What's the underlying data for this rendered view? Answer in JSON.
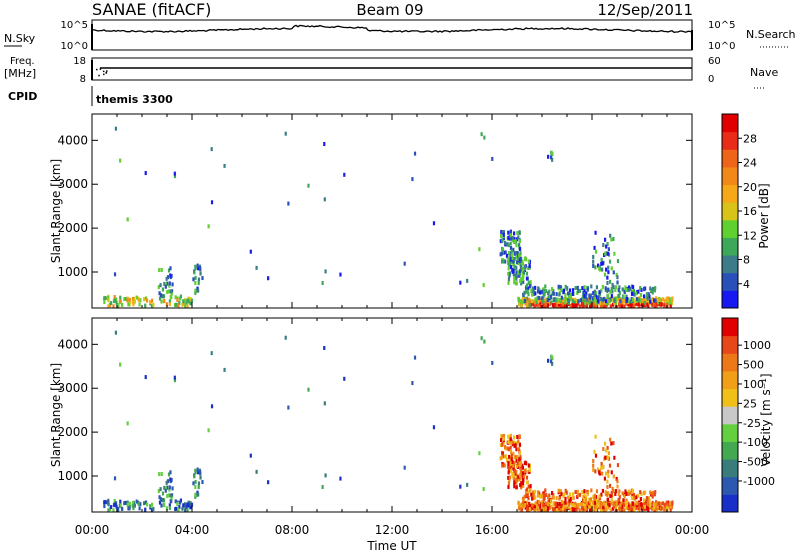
{
  "header": {
    "station": "SANAE (fitACF)",
    "beam": "Beam 09",
    "date": "12/Sep/2011"
  },
  "top_panels": {
    "nsky_label": "N.Sky",
    "nsearch_label": "N.Search",
    "noise_ticks": [
      "10^5",
      "10^0"
    ],
    "freq_label": "Freq.",
    "freq_unit": "[MHz]",
    "freq_ticks": [
      "18",
      "8"
    ],
    "nave_label": "Nave",
    "nave_ticks": [
      "60",
      "0"
    ],
    "cpid_label": "CPID",
    "cpid_value": "themis 3300"
  },
  "time_axis": {
    "ticks": [
      "00:00",
      "04:00",
      "08:00",
      "12:00",
      "16:00",
      "20:00",
      "00:00"
    ],
    "label": "Time UT"
  },
  "chart_data": [
    {
      "type": "heatmap",
      "panel": "power",
      "xlabel": "Time UT",
      "ylabel": "Slant Range [km]",
      "xlim": [
        0,
        24
      ],
      "ylim": [
        180,
        4600
      ],
      "yticks": [
        1000,
        2000,
        3000,
        4000
      ],
      "colorbar": {
        "label": "Power [dB]",
        "ticks": [
          4,
          8,
          12,
          16,
          20,
          24,
          28
        ],
        "colors": [
          "#1818f0",
          "#2850b8",
          "#3c7c88",
          "#3ea85a",
          "#60d030",
          "#d8c418",
          "#f5a818",
          "#f28818",
          "#ee6418",
          "#e82c18",
          "#e00000"
        ]
      },
      "scatter_regions": [
        {
          "t": [
            16.3,
            17.1
          ],
          "r": [
            1200,
            1900
          ]
        },
        {
          "t": [
            16.6,
            17.4
          ],
          "r": [
            700,
            1300
          ]
        },
        {
          "t": [
            17.0,
            23.2
          ],
          "r": [
            180,
            700
          ]
        },
        {
          "t": [
            20.0,
            21.0
          ],
          "r": [
            500,
            1900
          ]
        },
        {
          "t": [
            0.4,
            4.0
          ],
          "r": [
            180,
            420
          ]
        },
        {
          "t": [
            2.6,
            3.2
          ],
          "r": [
            400,
            1100
          ]
        },
        {
          "t": [
            4.0,
            4.3
          ],
          "r": [
            500,
            1150
          ]
        }
      ]
    },
    {
      "type": "heatmap",
      "panel": "velocity",
      "xlabel": "Time UT",
      "ylabel": "Slant Range [km]",
      "xlim": [
        0,
        24
      ],
      "ylim": [
        180,
        4600
      ],
      "yticks": [
        1000,
        2000,
        3000,
        4000
      ],
      "colorbar": {
        "label": "Velocity [m s⁻¹]",
        "ticks": [
          1000,
          500,
          100,
          25,
          -25,
          -100,
          -500,
          -1000
        ],
        "colors": [
          "#1830c8",
          "#2c58b0",
          "#387c7c",
          "#44a850",
          "#64d040",
          "#c8c8c8",
          "#f0c018",
          "#f0a018",
          "#ec7818",
          "#e84818",
          "#e00000"
        ]
      }
    }
  ]
}
